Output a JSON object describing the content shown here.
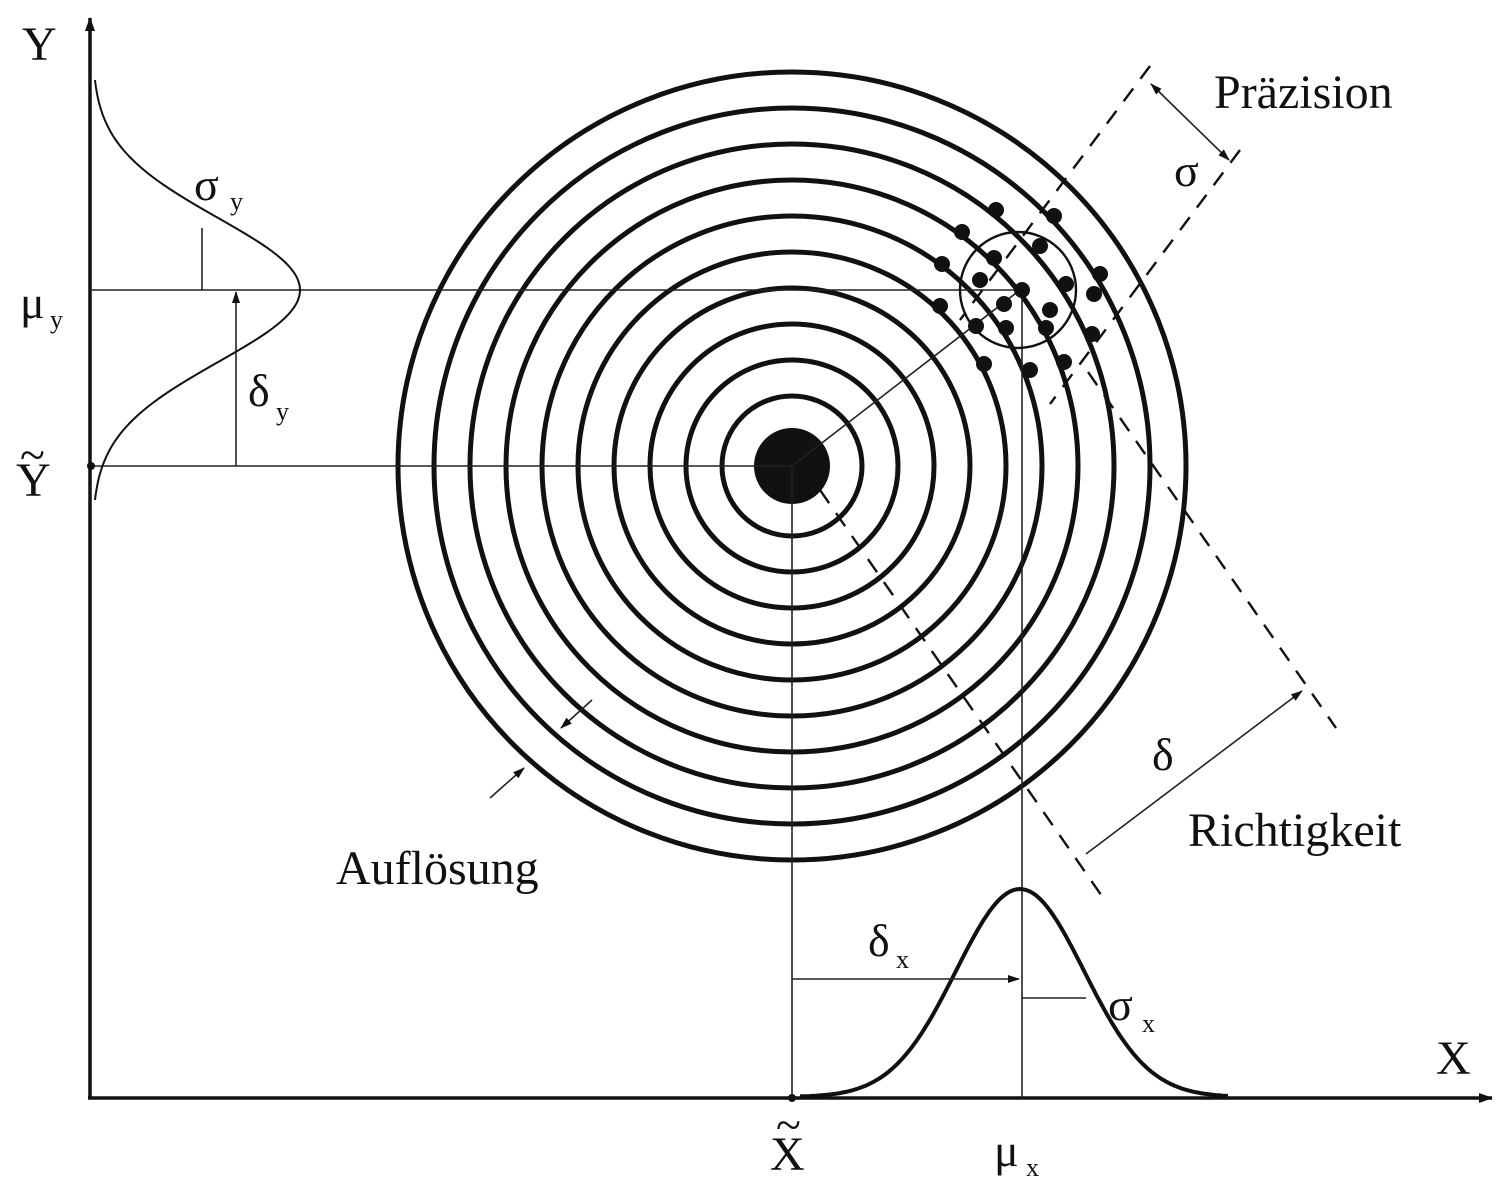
{
  "labels": {
    "y_axis": "Y",
    "x_axis": "X",
    "y_true": "Y",
    "x_true": "X",
    "tilde": "~",
    "mu": "μ",
    "sigma": "σ",
    "delta": "δ",
    "sub_x": "x",
    "sub_y": "y",
    "praezision": "Präzision",
    "richtigkeit": "Richtigkeit",
    "aufloesung": "Auflösung"
  },
  "colors": {
    "ink": "#111111",
    "background": "#ffffff"
  },
  "target": {
    "ring_count": 10,
    "shot_count": 21
  }
}
